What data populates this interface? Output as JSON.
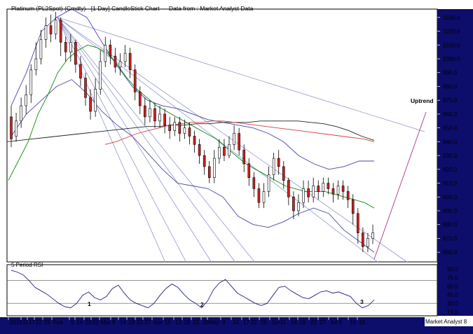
{
  "chart_data": {
    "type": "candlestick",
    "title": "Platinum (PL2Spot) (Cmdty) - [1 Day] CandleStick Chart --- Data from : Market Analyst Data",
    "annotation": "Uptrend",
    "price_axis": {
      "ticks": [
        "1030.0",
        "1020.0",
        "1010.0",
        "1000.0",
        "990.0",
        "980.0",
        "970.0",
        "960.0",
        "950.0",
        "940.0",
        "930.0",
        "920.0",
        "910.0",
        "900.0",
        "890.0",
        "880.0",
        "870.0",
        "860.0"
      ],
      "range": [
        853,
        1036
      ]
    },
    "rsi_panel": {
      "label": "5 Period RSI",
      "ticks": [
        "90.0",
        "75.0",
        "60.0",
        "45.0",
        "30.0",
        "15.0"
      ],
      "range": [
        8,
        98
      ],
      "levels": [
        70,
        30
      ],
      "markers": [
        "1",
        "2",
        "3"
      ]
    },
    "x_axis_labels": [
      "2018",
      "11",
      "17",
      "22",
      "25",
      "Feb",
      "9",
      "14",
      "20",
      "23",
      "Mar",
      "9",
      "14",
      "19",
      "22",
      "27",
      "Apr",
      "10",
      "13",
      "18",
      "23",
      "26",
      "May",
      "9",
      "14",
      "17",
      "22",
      "25",
      "Jun",
      "11",
      "14",
      "19",
      "22",
      "27",
      "Jul",
      "5",
      "10",
      "15"
    ],
    "footer": "Market Analyst 8",
    "series": [
      {
        "name": "Platinum daily candles",
        "values": [
          [
            958,
            942,
            966,
            936
          ],
          [
            944,
            955,
            961,
            940
          ],
          [
            955,
            966,
            972,
            950
          ],
          [
            966,
            974,
            981,
            960
          ],
          [
            974,
            992,
            996,
            968
          ],
          [
            992,
            1000,
            1012,
            988
          ],
          [
            1000,
            1014,
            1021,
            996
          ],
          [
            1014,
            1024,
            1030,
            1008
          ],
          [
            1024,
            1018,
            1032,
            1012
          ],
          [
            1018,
            1028,
            1034,
            1014
          ],
          [
            1028,
            1012,
            1030,
            1002
          ],
          [
            1012,
            1005,
            1016,
            998
          ],
          [
            1005,
            1012,
            1018,
            998
          ],
          [
            1012,
            996,
            1014,
            990
          ],
          [
            996,
            986,
            1002,
            980
          ],
          [
            986,
            972,
            990,
            966
          ],
          [
            972,
            962,
            978,
            956
          ],
          [
            962,
            978,
            986,
            958
          ],
          [
            978,
            998,
            1006,
            974
          ],
          [
            998,
            1010,
            1016,
            994
          ],
          [
            1010,
            1002,
            1014,
            996
          ],
          [
            1002,
            994,
            1008,
            990
          ],
          [
            994,
            998,
            1004,
            988
          ],
          [
            998,
            1004,
            1010,
            994
          ],
          [
            1004,
            992,
            1008,
            986
          ],
          [
            992,
            976,
            996,
            970
          ],
          [
            976,
            966,
            980,
            960
          ],
          [
            966,
            958,
            972,
            952
          ],
          [
            958,
            964,
            970,
            954
          ],
          [
            964,
            955,
            968,
            950
          ],
          [
            955,
            960,
            966,
            950
          ],
          [
            960,
            952,
            964,
            946
          ],
          [
            952,
            948,
            958,
            942
          ],
          [
            948,
            954,
            958,
            944
          ],
          [
            954,
            946,
            958,
            940
          ],
          [
            946,
            950,
            956,
            942
          ],
          [
            950,
            944,
            954,
            938
          ],
          [
            944,
            938,
            948,
            932
          ],
          [
            938,
            930,
            942,
            924
          ],
          [
            930,
            922,
            934,
            916
          ],
          [
            922,
            914,
            926,
            910
          ],
          [
            914,
            928,
            934,
            910
          ],
          [
            928,
            936,
            942,
            924
          ],
          [
            936,
            930,
            942,
            926
          ],
          [
            930,
            938,
            944,
            928
          ],
          [
            938,
            946,
            952,
            934
          ],
          [
            946,
            934,
            950,
            930
          ],
          [
            934,
            924,
            938,
            918
          ],
          [
            924,
            914,
            928,
            908
          ],
          [
            914,
            906,
            918,
            900
          ],
          [
            906,
            896,
            910,
            892
          ],
          [
            896,
            904,
            910,
            892
          ],
          [
            904,
            916,
            922,
            900
          ],
          [
            916,
            928,
            932,
            912
          ],
          [
            928,
            922,
            934,
            916
          ],
          [
            922,
            912,
            926,
            906
          ],
          [
            912,
            900,
            914,
            894
          ],
          [
            900,
            890,
            904,
            884
          ],
          [
            890,
            896,
            902,
            886
          ],
          [
            896,
            906,
            912,
            892
          ],
          [
            906,
            900,
            912,
            896
          ],
          [
            900,
            908,
            914,
            896
          ],
          [
            908,
            904,
            912,
            898
          ],
          [
            904,
            910,
            914,
            900
          ],
          [
            910,
            906,
            914,
            902
          ],
          [
            906,
            902,
            910,
            896
          ],
          [
            902,
            908,
            912,
            898
          ],
          [
            908,
            904,
            912,
            898
          ],
          [
            904,
            898,
            908,
            892
          ],
          [
            898,
            888,
            902,
            880
          ],
          [
            888,
            874,
            892,
            866
          ],
          [
            874,
            864,
            878,
            860
          ],
          [
            864,
            870,
            874,
            860
          ],
          [
            870,
            874,
            880,
            866
          ]
        ]
      },
      {
        "name": "Moving average (short)",
        "values": [
          912,
          926,
          940,
          960,
          974,
          990,
          1000,
          1006,
          1010,
          1008,
          1004,
          996,
          986,
          978,
          972,
          966,
          962,
          958,
          954,
          950,
          946,
          942,
          936,
          930,
          924,
          920,
          916,
          912,
          908,
          906,
          904,
          904,
          904,
          902,
          900,
          898,
          896,
          892
        ]
      },
      {
        "name": "Moving average (long)",
        "values": [
          940,
          941,
          942,
          943,
          944,
          945,
          946,
          947,
          948,
          949,
          950,
          951,
          951,
          952,
          952,
          953,
          953,
          954,
          954,
          954,
          955,
          955,
          955,
          955,
          954,
          953,
          951,
          948,
          944,
          941
        ]
      },
      {
        "name": "Moving average (medium)",
        "values": [
          938,
          940,
          943,
          946,
          948,
          950,
          952,
          953,
          954,
          954,
          955,
          955,
          954,
          953,
          952,
          951,
          950,
          949,
          948,
          947,
          946,
          945,
          944,
          943,
          942,
          940
        ]
      },
      {
        "name": "Bollinger upper",
        "values": [
          966,
          990,
          1020,
          1030,
          1036,
          1030,
          1012,
          995,
          980,
          970,
          966,
          964,
          960,
          956,
          954,
          952,
          950,
          946,
          940,
          930,
          924,
          920,
          922,
          926,
          926
        ]
      },
      {
        "name": "Bollinger lower",
        "values": [
          944,
          960,
          970,
          980,
          985,
          975,
          962,
          952,
          944,
          932,
          920,
          910,
          908,
          906,
          900,
          886,
          880,
          878,
          882,
          888,
          892,
          888,
          876,
          868,
          860
        ]
      },
      {
        "name": "RSI",
        "values": [
          88,
          85,
          80,
          70,
          58,
          52,
          46,
          38,
          30,
          24,
          22,
          30,
          44,
          50,
          40,
          36,
          42,
          56,
          62,
          48,
          36,
          30,
          26,
          22,
          30,
          44,
          56,
          64,
          58,
          46,
          36,
          30,
          22,
          34,
          54,
          66,
          72,
          60,
          48,
          42,
          36,
          30,
          26,
          30,
          44,
          58,
          60,
          52,
          46,
          40,
          38,
          44,
          50,
          52,
          48,
          50,
          46,
          42,
          30,
          22,
          26,
          36
        ]
      }
    ]
  },
  "colors": {
    "background": "#ffffff",
    "price_line": "#000000",
    "bear_candle": "#d42020",
    "bull_candle": "#ffffff",
    "fan_lines": "#9097cc",
    "bollinger": "#4646a8",
    "ma_short": "#0a8a0a",
    "ma_medium": "#d04040",
    "ma_long": "#222222",
    "uptrend_line": "#a13a8a",
    "rsi_line": "#20207a",
    "axis_bar": "#0d0d6b",
    "axis_text": "#ffffff"
  }
}
